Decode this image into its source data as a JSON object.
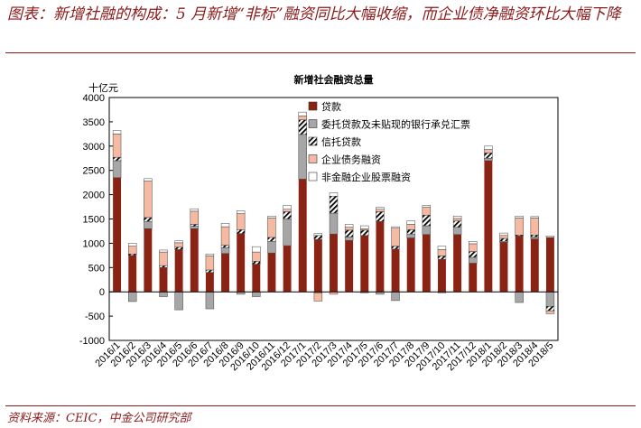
{
  "page": {
    "title": "图表：新增社融的构成：5 月新增“非标”融资同比大幅收缩，而企业债净融资环比大幅下降",
    "source": "资料来源：CEIC，中金公司研究部"
  },
  "colors": {
    "loans": "#8b2314",
    "entrusted": "#a6a6a6",
    "trust": "#ffffff",
    "bonds": "#f6b9a2",
    "equity": "#ffffff",
    "title": "#8b1a1a"
  },
  "chart_data": {
    "type": "bar",
    "stacked": true,
    "title": "新增社会融资总量",
    "unit_label": "十亿元",
    "ylim": [
      -1000,
      4000
    ],
    "yticks": [
      "4000",
      "3500",
      "3000",
      "2500",
      "2000",
      "1500",
      "1000",
      "500",
      "0",
      "-500",
      "-1000"
    ],
    "legend_position": "top-center",
    "categories": [
      "2016/1",
      "2016/2",
      "2016/3",
      "2016/4",
      "2016/5",
      "2016/6",
      "2016/7",
      "2016/8",
      "2016/9",
      "2016/10",
      "2016/11",
      "2016/12",
      "2017/1",
      "2017/2",
      "2017/3",
      "2017/4",
      "2017/5",
      "2017/6",
      "2017/7",
      "2017/8",
      "2017/9",
      "2017/10",
      "2017/11",
      "2017/12",
      "2018/1",
      "2018/2",
      "2018/3",
      "2018/4",
      "2018/5"
    ],
    "series": [
      {
        "name": "贷款",
        "key": "loans",
        "pattern": "solid",
        "values": [
          2350,
          750,
          1300,
          500,
          870,
          1300,
          400,
          790,
          1200,
          570,
          800,
          950,
          2320,
          1080,
          1190,
          1060,
          1160,
          1450,
          880,
          1110,
          1180,
          670,
          1180,
          590,
          2700,
          1020,
          1150,
          1090,
          1120
        ]
      },
      {
        "name": "委托贷款及未贴现的银行承兑汇票",
        "key": "entrusted",
        "pattern": "gray",
        "values": [
          350,
          -200,
          150,
          -100,
          -370,
          50,
          -350,
          120,
          -50,
          -100,
          240,
          550,
          920,
          -20,
          430,
          70,
          -20,
          -50,
          -180,
          80,
          180,
          -20,
          150,
          120,
          50,
          20,
          -220,
          40,
          -300
        ]
      },
      {
        "name": "信托贷款",
        "key": "trust",
        "pattern": "hatch",
        "values": [
          70,
          30,
          80,
          40,
          50,
          40,
          50,
          50,
          80,
          60,
          80,
          150,
          300,
          80,
          350,
          140,
          110,
          200,
          60,
          90,
          220,
          70,
          130,
          120,
          110,
          60,
          20,
          40,
          -90
        ]
      },
      {
        "name": "企业债务融资",
        "key": "bonds",
        "pattern": "solid",
        "values": [
          480,
          160,
          750,
          280,
          90,
          270,
          290,
          380,
          330,
          190,
          400,
          50,
          80,
          -170,
          -50,
          60,
          30,
          50,
          370,
          110,
          160,
          130,
          50,
          160,
          70,
          60,
          350,
          350,
          -60
        ]
      },
      {
        "name": "非金融企业股票融资",
        "key": "equity",
        "pattern": "outline",
        "values": [
          70,
          60,
          50,
          40,
          40,
          50,
          40,
          70,
          60,
          110,
          40,
          80,
          80,
          40,
          70,
          60,
          60,
          40,
          30,
          70,
          40,
          70,
          50,
          50,
          70,
          50,
          40,
          30,
          30
        ]
      }
    ]
  }
}
